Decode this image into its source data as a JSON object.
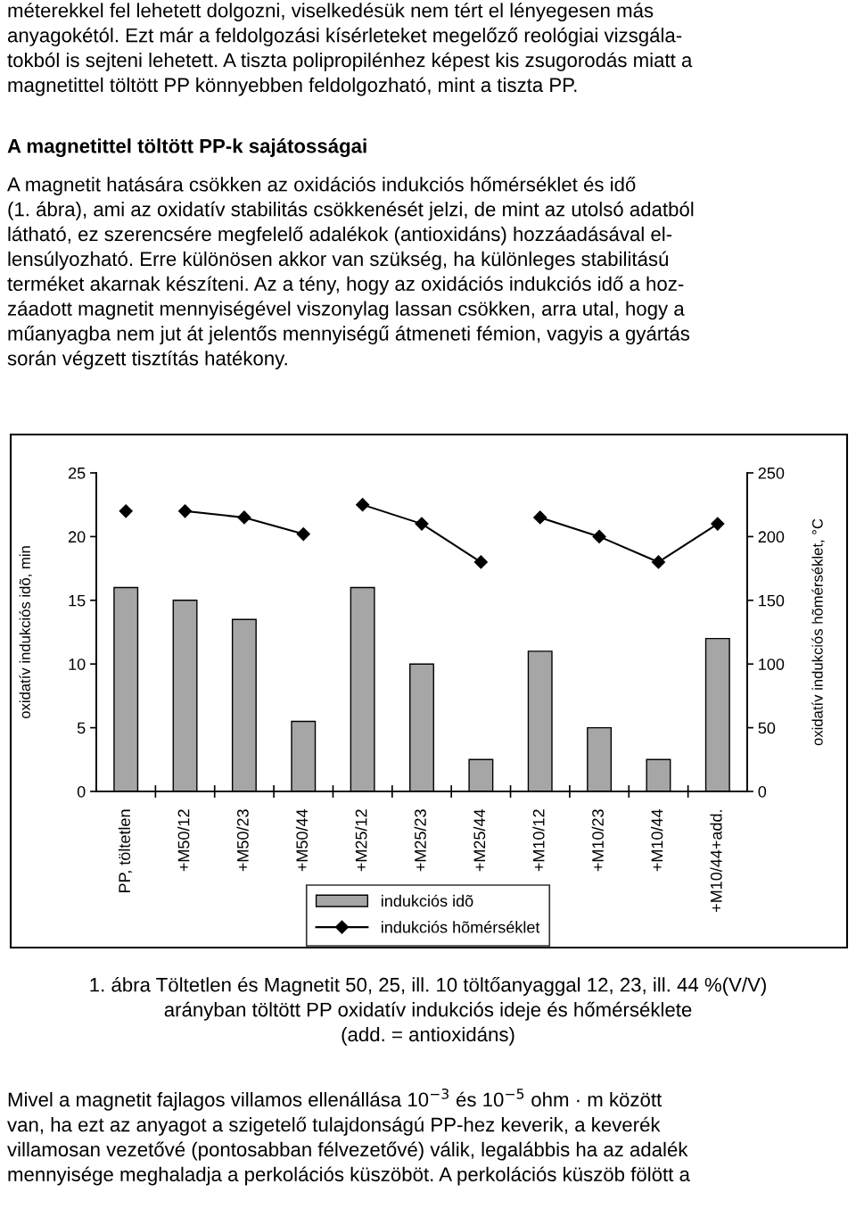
{
  "chart_data": {
    "type": "bar",
    "categories": [
      "PP, töltetlen",
      "+M50/12",
      "+M50/23",
      "+M50/44",
      "+M25/12",
      "+M25/23",
      "+M25/44",
      "+M10/12",
      "+M10/23",
      "+M10/44",
      "+M10/44+add."
    ],
    "series": [
      {
        "name": "indukciós idõ",
        "color": "#a6a6a6",
        "values": [
          16,
          15,
          13.5,
          5.5,
          16,
          10,
          2.5,
          11,
          5,
          2.5,
          12
        ]
      },
      {
        "name": "indukciós hõmérséklet",
        "type": "line",
        "axis": "y2",
        "color": "#000000",
        "values": [
          220,
          null,
          null,
          null,
          null,
          null,
          null,
          null,
          null,
          null,
          null
        ]
      },
      {
        "type": "line",
        "axis": "y2",
        "color": "#000000",
        "values": [
          null,
          220,
          215,
          202,
          null,
          null,
          null,
          null,
          null,
          null,
          null
        ]
      },
      {
        "type": "line",
        "axis": "y2",
        "color": "#000000",
        "values": [
          null,
          null,
          null,
          null,
          225,
          210,
          180,
          null,
          null,
          null,
          null
        ]
      },
      {
        "type": "line",
        "axis": "y2",
        "color": "#000000",
        "values": [
          null,
          null,
          null,
          null,
          null,
          null,
          null,
          215,
          200,
          180,
          210
        ]
      }
    ],
    "ylabel": "oxidatív indukciós idõ, min",
    "y2label": "oxidatív indukciós hõmérséklet, °C",
    "ylim": [
      0,
      25
    ],
    "yticks": [
      0,
      5,
      10,
      15,
      20,
      25
    ],
    "y2lim": [
      0,
      250
    ],
    "y2ticks": [
      0,
      50,
      100,
      150,
      200,
      250
    ],
    "marker": "diamond",
    "line_style": "solid",
    "grid": false,
    "legend": "bottom",
    "annotations": [
      "méterekkel fel lehetett dolgozni, viselkedésük nem tért el lényegesen más\nanyagokétól. Ezt már a feldolgozási kísérleteket megelőző reológiai vizsgála-\ntokból is sejteni lehetett. A tiszta polipropilénhez képest kis zsugorodás miatt a\nmagnetittel töltött PP könnyebben feldolgozható, mint a tiszta PP.",
      "A magnetittel töltött PP-k sajátosságai",
      "A magnetit hatására csökken az oxidációs indukciós hőmérséklet és idő\n(1. ábra), ami az oxidatív stabilitás csökkenését jelzi, de mint az utolsó adatból\nlátható, ez szerencsére megfelelő adalékok (antioxidáns) hozzáadásával el-\nlensúlyozható. Erre különösen akkor van szükség, ha különleges stabilitású\nterméket akarnak készíteni. Az a tény, hogy az oxidációs indukciós idő a hoz-\nzáadott magnetit mennyiségével viszonylag lassan csökken, arra utal, hogy a\nműanyagba nem jut át jelentős mennyiségű átmeneti fémion, vagyis a gyártás\nsorán végzett tisztítás hatékony.",
      "1. ábra Töltetlen és Magnetit 50, 25, ill. 10 töltőanyaggal 12, 23, ill. 44 %(V/V)\narányban töltött PP oxidatív indukciós ideje és hőmérséklete\n(add. = antioxidáns)",
      "Mivel a magnetit fajlagos villamos ellenállása 10$^{−3}$ és 10$^{−5}$ ohm · m között\nvan, ha ezt az anyagot a szigetelő tulajdonságú PP-hez keverik, a keverék\nvillamosan vezetővé (pontosabban félvezetővé) válik, legalábbis ha az adalék\nmennyisége meghaladja a perkolációs küszöböt. A perkolációs küszöb fölött a"
    ]
  }
}
